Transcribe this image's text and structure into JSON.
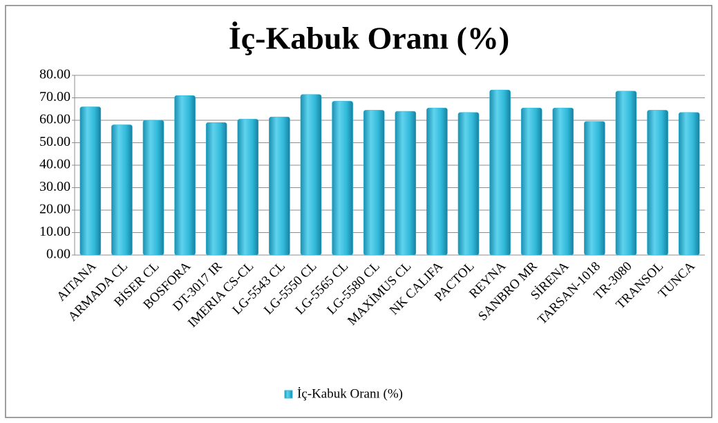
{
  "chart_data": {
    "type": "bar",
    "title": "İç-Kabuk Oranı (%)",
    "categories": [
      "AITANA",
      "ARMADA CL",
      "BİSER CL",
      "BOSFORA",
      "DT-3017 IR",
      "IMERIA CS-CL",
      "LG-5543 CL",
      "LG-5550 CL",
      "LG-5565 CL",
      "LG-5580 CL",
      "MAXİMUS CL",
      "NK CALIFA",
      "PACTOL",
      "REYNA",
      "SANBRO MR",
      "SİRENA",
      "TARSAN-1018",
      "TR-3080",
      "TRANSOL",
      "TUNCA"
    ],
    "series": [
      {
        "name": "İç-Kabuk Oranı (%)",
        "color": "#31b9d9",
        "values": [
          66.0,
          58.0,
          60.0,
          71.0,
          59.0,
          60.5,
          61.5,
          71.5,
          68.5,
          64.5,
          64.0,
          65.5,
          63.5,
          73.5,
          65.5,
          65.5,
          59.5,
          73.0,
          64.5,
          63.5
        ]
      }
    ],
    "ylim": [
      0,
      80
    ],
    "yticks": [
      {
        "value": 0,
        "label": "0.00"
      },
      {
        "value": 10,
        "label": "10.00"
      },
      {
        "value": 20,
        "label": "20.00"
      },
      {
        "value": 30,
        "label": "30.00"
      },
      {
        "value": 40,
        "label": "40.00"
      },
      {
        "value": 50,
        "label": "50.00"
      },
      {
        "value": 60,
        "label": "60.00"
      },
      {
        "value": 70,
        "label": "70.00"
      },
      {
        "value": 80,
        "label": "80.00"
      }
    ],
    "grid": true,
    "legend": "bottom"
  }
}
